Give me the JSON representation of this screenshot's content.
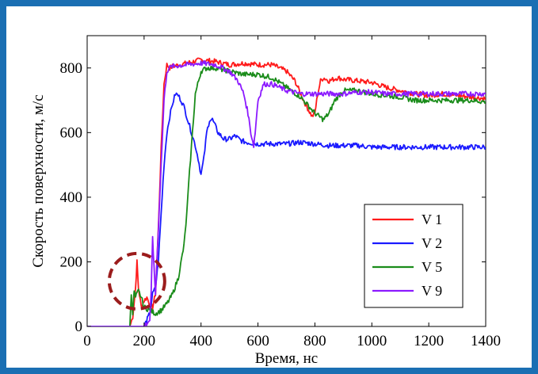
{
  "chart_data": {
    "type": "line",
    "xlabel": "Время, нс",
    "ylabel": "Скорость поверхности, м/с",
    "xlim": [
      0,
      1400
    ],
    "ylim": [
      0,
      900
    ],
    "xticks": [
      0,
      200,
      400,
      600,
      800,
      1000,
      1200,
      1400
    ],
    "yticks": [
      0,
      200,
      400,
      600,
      800
    ],
    "grid": false,
    "legend_position": "bottom-right",
    "annotation": {
      "type": "dashed-circle",
      "x": 175,
      "y": 140,
      "color": "#9b1c1c"
    },
    "series": [
      {
        "name": "V 1",
        "color": "#ff1a1a",
        "x": [
          0,
          150,
          160,
          170,
          175,
          180,
          190,
          200,
          210,
          220,
          230,
          240,
          250,
          260,
          270,
          280,
          290,
          300,
          350,
          400,
          450,
          500,
          550,
          600,
          650,
          700,
          730,
          760,
          790,
          800,
          810,
          820,
          830,
          850,
          880,
          900,
          950,
          1000,
          1050,
          1100,
          1150,
          1200,
          1250,
          1300,
          1350,
          1400
        ],
        "y": [
          0,
          0,
          30,
          120,
          200,
          120,
          60,
          80,
          90,
          70,
          60,
          100,
          300,
          550,
          750,
          810,
          800,
          805,
          815,
          825,
          820,
          810,
          815,
          810,
          810,
          790,
          760,
          700,
          650,
          660,
          720,
          760,
          770,
          760,
          770,
          765,
          760,
          755,
          740,
          730,
          720,
          715,
          720,
          715,
          710,
          705
        ]
      },
      {
        "name": "V 2",
        "color": "#1a1aff",
        "x": [
          0,
          200,
          220,
          230,
          240,
          250,
          260,
          270,
          280,
          290,
          300,
          310,
          320,
          330,
          340,
          350,
          360,
          370,
          380,
          390,
          400,
          410,
          420,
          430,
          440,
          450,
          460,
          480,
          500,
          520,
          540,
          560,
          600,
          650,
          700,
          750,
          800,
          850,
          900,
          950,
          1000,
          1100,
          1200,
          1300,
          1400
        ],
        "y": [
          0,
          0,
          40,
          100,
          120,
          200,
          350,
          500,
          600,
          650,
          690,
          720,
          715,
          700,
          680,
          650,
          620,
          590,
          560,
          520,
          470,
          520,
          600,
          640,
          640,
          620,
          600,
          580,
          580,
          590,
          575,
          570,
          565,
          565,
          565,
          570,
          565,
          560,
          560,
          560,
          555,
          555,
          555,
          555,
          555
        ]
      },
      {
        "name": "V 5",
        "color": "#1a8c1a",
        "x": [
          0,
          150,
          155,
          160,
          165,
          170,
          175,
          180,
          190,
          200,
          220,
          240,
          260,
          280,
          300,
          320,
          340,
          350,
          360,
          370,
          380,
          400,
          420,
          450,
          500,
          550,
          600,
          650,
          700,
          750,
          800,
          830,
          850,
          870,
          900,
          950,
          1000,
          1050,
          1100,
          1150,
          1200,
          1250,
          1300,
          1350,
          1400
        ],
        "y": [
          0,
          0,
          100,
          40,
          110,
          90,
          100,
          110,
          90,
          60,
          50,
          40,
          50,
          70,
          100,
          150,
          250,
          350,
          480,
          600,
          720,
          790,
          800,
          800,
          790,
          780,
          780,
          770,
          740,
          710,
          660,
          640,
          660,
          700,
          730,
          730,
          720,
          715,
          710,
          700,
          700,
          700,
          700,
          700,
          695
        ]
      },
      {
        "name": "V 9",
        "color": "#8c1aff",
        "x": [
          0,
          200,
          220,
          225,
          230,
          235,
          240,
          250,
          260,
          270,
          280,
          290,
          300,
          350,
          400,
          450,
          500,
          530,
          550,
          565,
          575,
          585,
          590,
          600,
          620,
          650,
          700,
          750,
          800,
          850,
          900,
          950,
          1000,
          1050,
          1100,
          1150,
          1200,
          1250,
          1300,
          1350,
          1400
        ],
        "y": [
          0,
          0,
          20,
          100,
          280,
          180,
          100,
          300,
          500,
          700,
          790,
          800,
          805,
          810,
          815,
          810,
          790,
          760,
          720,
          660,
          600,
          560,
          600,
          700,
          750,
          750,
          730,
          720,
          720,
          720,
          720,
          725,
          725,
          720,
          720,
          720,
          720,
          720,
          720,
          720,
          720
        ]
      }
    ]
  }
}
